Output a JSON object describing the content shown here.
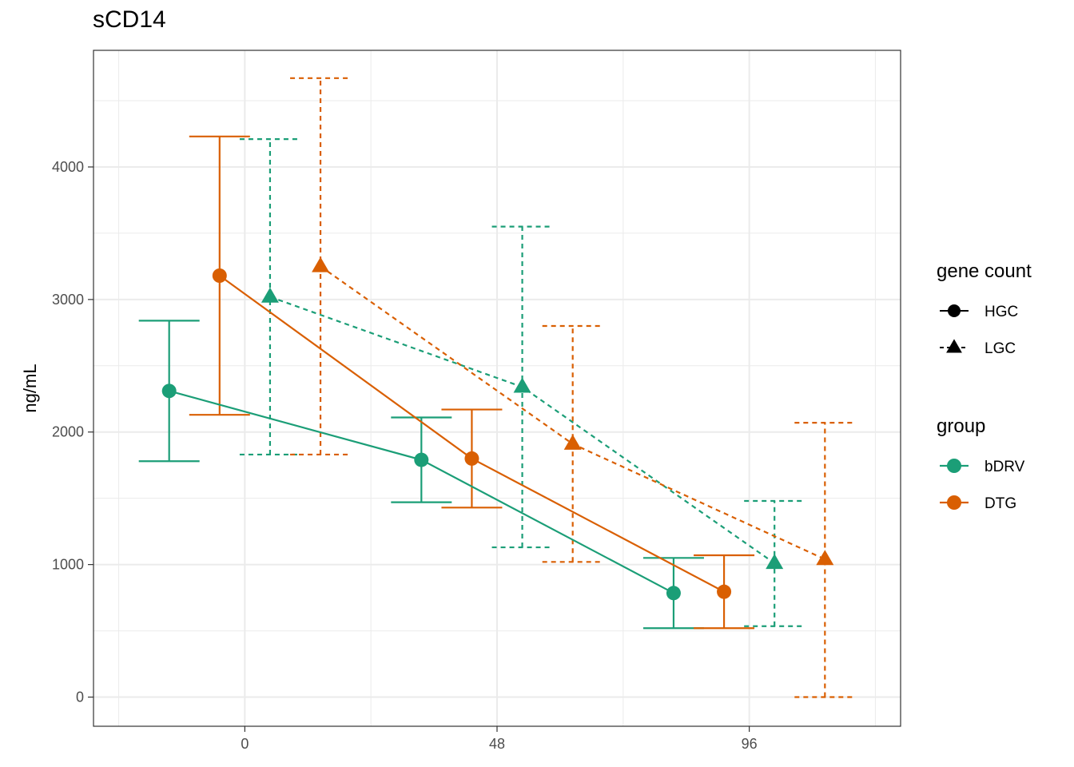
{
  "chart_data": {
    "type": "line",
    "title": "sCD14",
    "xlabel": "",
    "ylabel": "ng/mL",
    "x_ticks": [
      0,
      48,
      96
    ],
    "y_ticks": [
      0,
      1000,
      2000,
      3000,
      4000
    ],
    "xlim": [
      -28.8,
      124.8
    ],
    "ylim": [
      -220,
      4880
    ],
    "grid": true,
    "legend_position": "right",
    "legends": [
      {
        "title": "gene count",
        "entries": [
          {
            "label": "HGC",
            "shape": "circle",
            "linetype": "solid"
          },
          {
            "label": "LGC",
            "shape": "triangle",
            "linetype": "dashed"
          }
        ]
      },
      {
        "title": "group",
        "entries": [
          {
            "label": "bDRV",
            "color": "#1b9e77"
          },
          {
            "label": "DTG",
            "color": "#d95f02"
          }
        ]
      }
    ],
    "series": [
      {
        "group": "bDRV",
        "gene_count": "HGC",
        "color": "#1b9e77",
        "shape": "circle",
        "linetype": "solid",
        "points": [
          {
            "x": -14.4,
            "y": 2310,
            "lo": 1780,
            "hi": 2840
          },
          {
            "x": 33.6,
            "y": 1790,
            "lo": 1470,
            "hi": 2110
          },
          {
            "x": 81.6,
            "y": 785,
            "lo": 520,
            "hi": 1050
          }
        ]
      },
      {
        "group": "DTG",
        "gene_count": "HGC",
        "color": "#d95f02",
        "shape": "circle",
        "linetype": "solid",
        "points": [
          {
            "x": -4.8,
            "y": 3180,
            "lo": 2130,
            "hi": 4230
          },
          {
            "x": 43.2,
            "y": 1800,
            "lo": 1430,
            "hi": 2170
          },
          {
            "x": 91.2,
            "y": 795,
            "lo": 520,
            "hi": 1070
          }
        ]
      },
      {
        "group": "bDRV",
        "gene_count": "LGC",
        "color": "#1b9e77",
        "shape": "triangle",
        "linetype": "dashed",
        "points": [
          {
            "x": 4.8,
            "y": 3020,
            "lo": 1830,
            "hi": 4210
          },
          {
            "x": 52.8,
            "y": 2340,
            "lo": 1130,
            "hi": 3550
          },
          {
            "x": 100.8,
            "y": 1010,
            "lo": 535,
            "hi": 1480
          }
        ]
      },
      {
        "group": "DTG",
        "gene_count": "LGC",
        "color": "#d95f02",
        "shape": "triangle",
        "linetype": "dashed",
        "points": [
          {
            "x": 14.4,
            "y": 3250,
            "lo": 1830,
            "hi": 4670
          },
          {
            "x": 62.4,
            "y": 1910,
            "lo": 1020,
            "hi": 2800
          },
          {
            "x": 110.4,
            "y": 1040,
            "lo": 0,
            "hi": 2070
          }
        ]
      }
    ]
  }
}
